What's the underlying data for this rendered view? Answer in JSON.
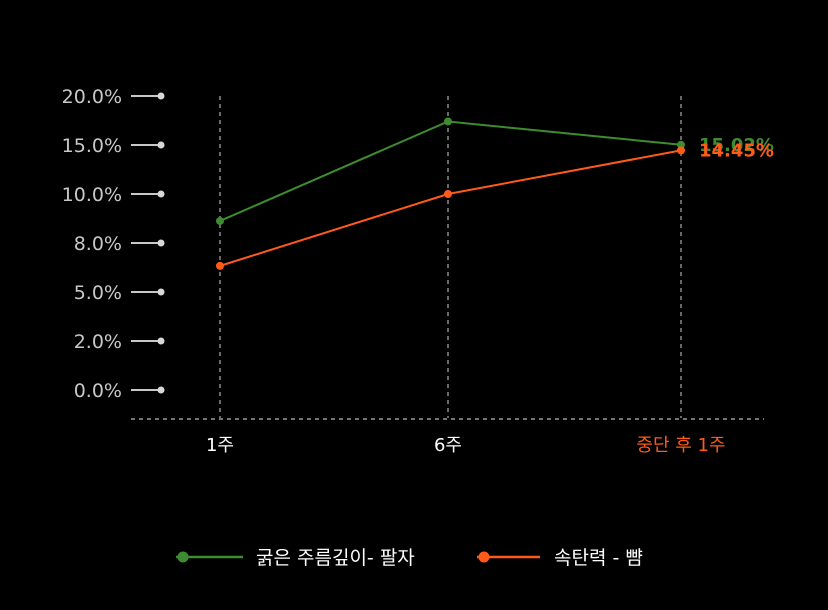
{
  "chart_data": {
    "type": "line",
    "categories": [
      "1주",
      "6주",
      "중단 후 1주"
    ],
    "highlight_category_index": 2,
    "y_ticks": [
      "20.0%",
      "15.0%",
      "10.0%",
      "8.0%",
      "5.0%",
      "2.0%",
      "0.0%"
    ],
    "series": [
      {
        "name": "굵은 주름깊이- 팔자",
        "color": "#3d8c2f",
        "values": [
          8.9,
          17.4,
          15.02
        ],
        "end_label": "15.02%"
      },
      {
        "name": "속탄력 - 뺨",
        "color": "#ff5a1a",
        "values": [
          6.6,
          10.0,
          14.45
        ],
        "end_label": "14.45%"
      }
    ],
    "grid": "vertical dashed lines at each category",
    "legend_position": "bottom"
  }
}
